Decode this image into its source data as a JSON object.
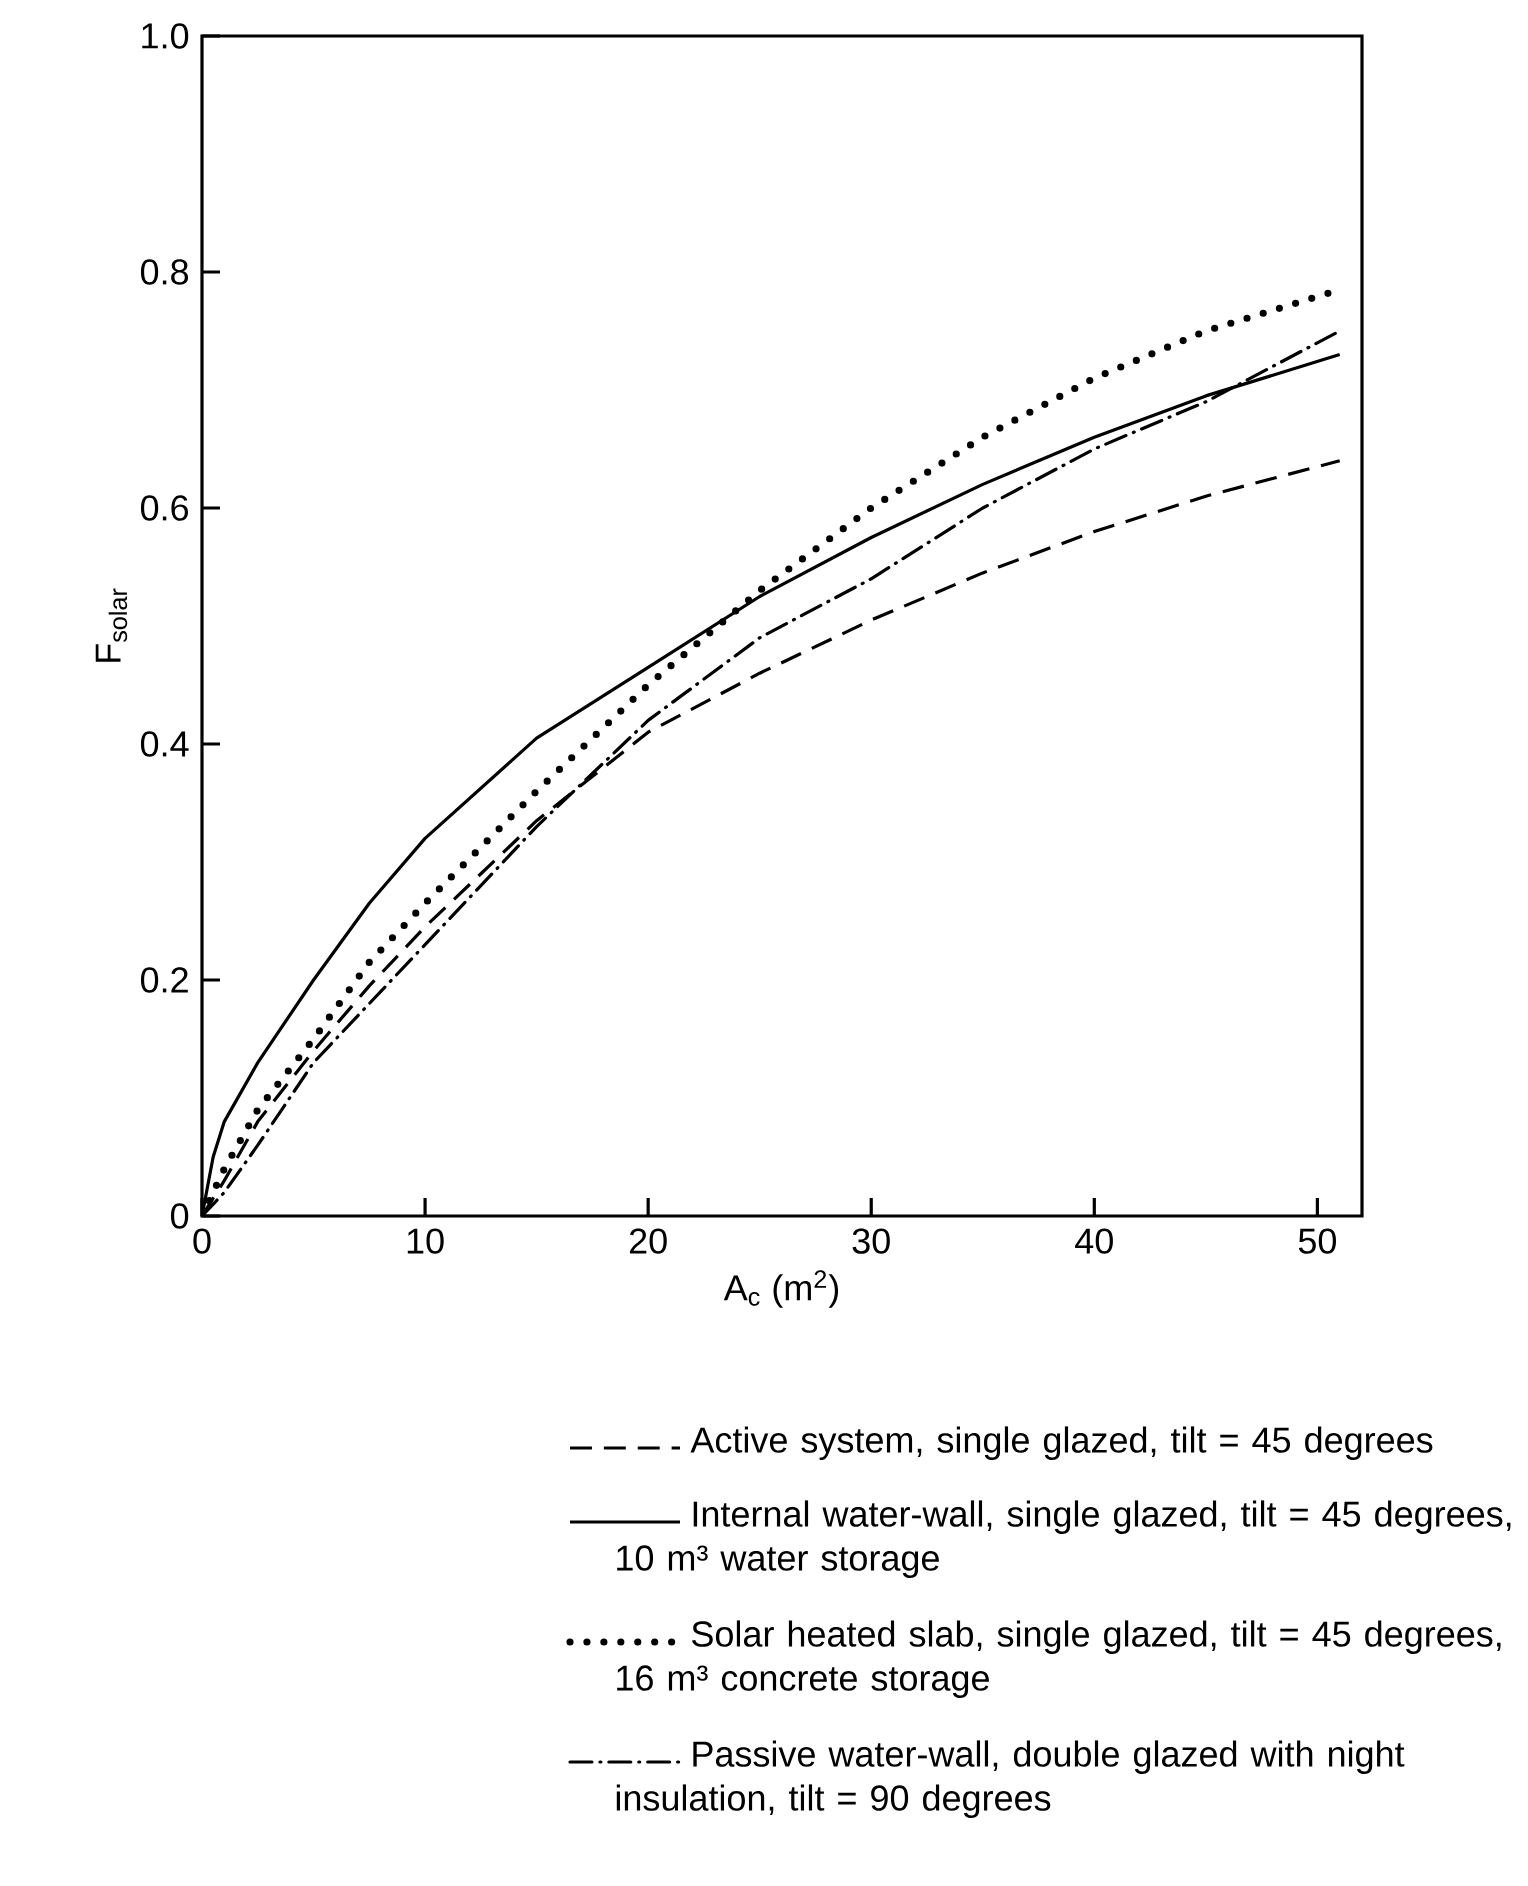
{
  "chart_data": {
    "type": "line",
    "xlabel": "A$_{c}$ (m$^{2}$)",
    "ylabel": "F$_{solar}$",
    "xlim": [
      0,
      52
    ],
    "ylim": [
      0,
      1
    ],
    "xticks": [
      0,
      10,
      20,
      30,
      40,
      50
    ],
    "yticks": [
      0,
      0.2,
      0.4,
      0.6,
      0.8,
      {
        "value": 1,
        "label": "1.0"
      }
    ],
    "grid": false,
    "legend": "bottom",
    "marker": "none",
    "series": [
      {
        "name": "Active system, single glazed, tilt = 45 degrees",
        "color": "#000000",
        "line_style": "dashed",
        "x": [
          0,
          1,
          2.5,
          5,
          7.5,
          10,
          15,
          20,
          25,
          30,
          35,
          40,
          45,
          51
        ],
        "values": [
          0,
          0.03,
          0.08,
          0.14,
          0.195,
          0.245,
          0.335,
          0.41,
          0.46,
          0.505,
          0.545,
          0.58,
          0.61,
          0.64
        ]
      },
      {
        "name": "Internal water-wall, single glazed, tilt = 45 degrees, 10 m³ water storage",
        "color": "#000000",
        "line_style": "solid",
        "x": [
          0,
          0.5,
          1,
          2.5,
          5,
          7.5,
          10,
          15,
          20,
          25,
          30,
          35,
          40,
          45,
          51
        ],
        "values": [
          0,
          0.05,
          0.08,
          0.13,
          0.2,
          0.265,
          0.32,
          0.405,
          0.465,
          0.525,
          0.575,
          0.62,
          0.66,
          0.695,
          0.73
        ]
      },
      {
        "name": "Solar heated slab, single glazed, tilt = 45 degrees, 16 m³ concrete storage",
        "color": "#000000",
        "line_style": "dotted",
        "x": [
          0,
          1,
          2.5,
          5,
          7.5,
          10,
          15,
          20,
          25,
          30,
          35,
          40,
          45,
          51
        ],
        "values": [
          0,
          0.04,
          0.09,
          0.15,
          0.215,
          0.265,
          0.36,
          0.45,
          0.53,
          0.6,
          0.66,
          0.71,
          0.75,
          0.785
        ]
      },
      {
        "name": "Passive water-wall, double glazed with night insulation, tilt = 90 degrees",
        "color": "#000000",
        "line_style": "dashdot",
        "x": [
          0,
          1,
          2.5,
          5,
          7.5,
          10,
          15,
          20,
          25,
          30,
          35,
          40,
          45,
          51
        ],
        "values": [
          0,
          0.02,
          0.06,
          0.13,
          0.18,
          0.23,
          0.33,
          0.42,
          0.49,
          0.54,
          0.6,
          0.65,
          0.69,
          0.75
        ]
      }
    ]
  }
}
